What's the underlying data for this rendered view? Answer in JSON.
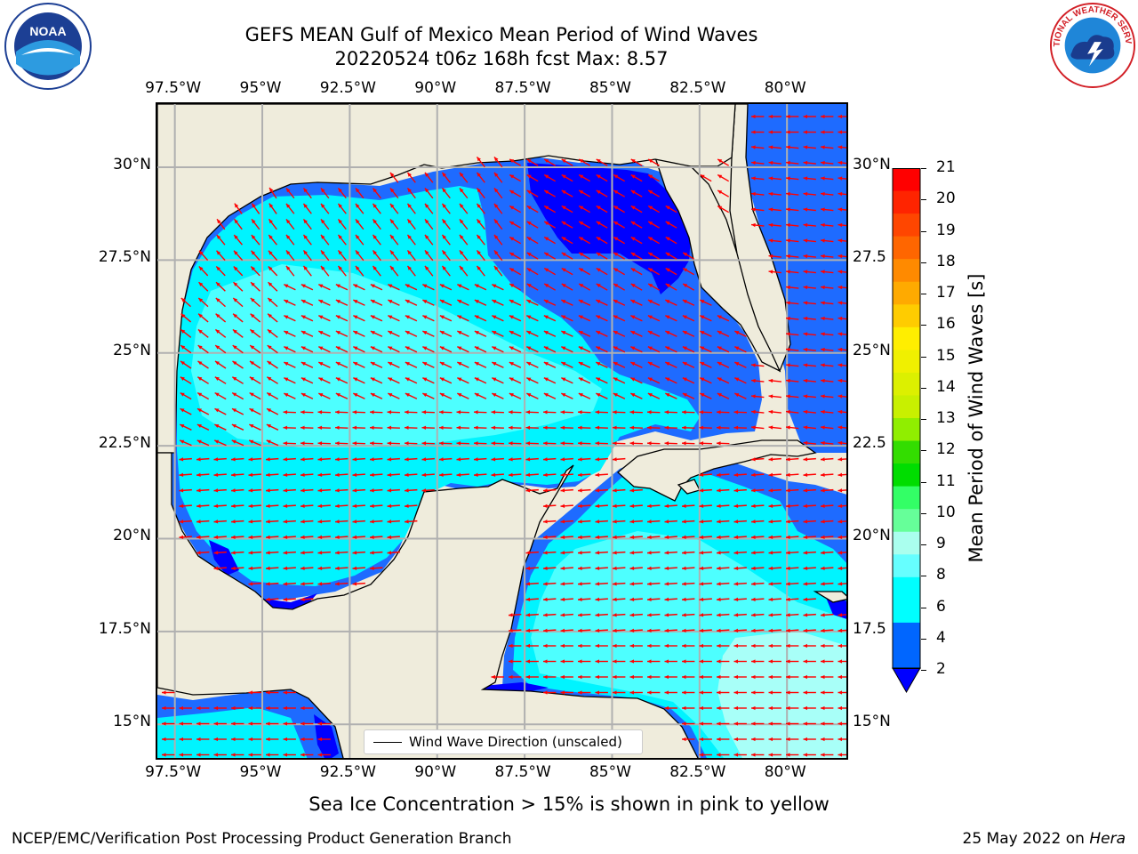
{
  "title": {
    "line1": "GEFS MEAN Gulf of Mexico Mean Period of Wind Waves",
    "line2": "20220524 t06z 168h fcst   Max: 8.57"
  },
  "axes": {
    "lon_labels": [
      "97.5°W",
      "95°W",
      "92.5°W",
      "90°W",
      "87.5°W",
      "85°W",
      "82.5°W",
      "80°W"
    ],
    "lat_labels_left": [
      "30°N",
      "27.5°N",
      "25°N",
      "22.5°N",
      "20°N",
      "17.5°N",
      "15°N"
    ],
    "lat_labels_right": [
      "30°N",
      "27.5",
      "25°N",
      "22.5",
      "20°N",
      "17.5",
      "15°N"
    ]
  },
  "map_extent": {
    "lon": [
      -98,
      -78.2
    ],
    "lat": [
      14.0,
      31.7
    ]
  },
  "legend": {
    "label": "Wind Wave Direction (unscaled)"
  },
  "colorbar": {
    "title": "Mean Period of Wind Waves [s]",
    "labels": [
      "21",
      "20",
      "19",
      "18",
      "17",
      "16",
      "15",
      "14",
      "13",
      "12",
      "11",
      "10",
      "9",
      "8",
      "6",
      "4",
      "2"
    ],
    "colors_top_to_bottom": [
      "#ff0000",
      "#ff2400",
      "#ff4600",
      "#ff6600",
      "#ff8a00",
      "#ffaa00",
      "#ffcc00",
      "#ffee00",
      "#f0f000",
      "#dcf000",
      "#c8f000",
      "#90ee00",
      "#33dd00",
      "#00dd00",
      "#33ff66",
      "#66ff99",
      "#aaffee",
      "#66ffff",
      "#00ffff",
      "#00ffff",
      "#0066ff",
      "#0066ff"
    ],
    "extend_color": "#0000ff"
  },
  "field": {
    "type": "filled-contour",
    "levels_s": [
      2,
      4,
      6,
      8,
      9
    ],
    "colors": {
      "period_2_4": "#1e6bff",
      "period_4_6": "#00f4ff",
      "period_6_8": "#4dffff",
      "period_8_9": "#a8fff8",
      "period_below_2": "#0000ff"
    },
    "land_color": "#efecdc",
    "max_s": 8.57,
    "arrow_color": "#ff0000"
  },
  "notes": {
    "sea_ice": "Sea Ice Concentration > 15% is shown in pink to yellow"
  },
  "footer": {
    "left": "NCEP/EMC/Verification Post Processing Product Generation Branch",
    "date": "25 May 2022 on ",
    "machine": "Hera"
  },
  "logos": {
    "noaa": "NOAA",
    "nws": "NATIONAL WEATHER SERVICE"
  }
}
